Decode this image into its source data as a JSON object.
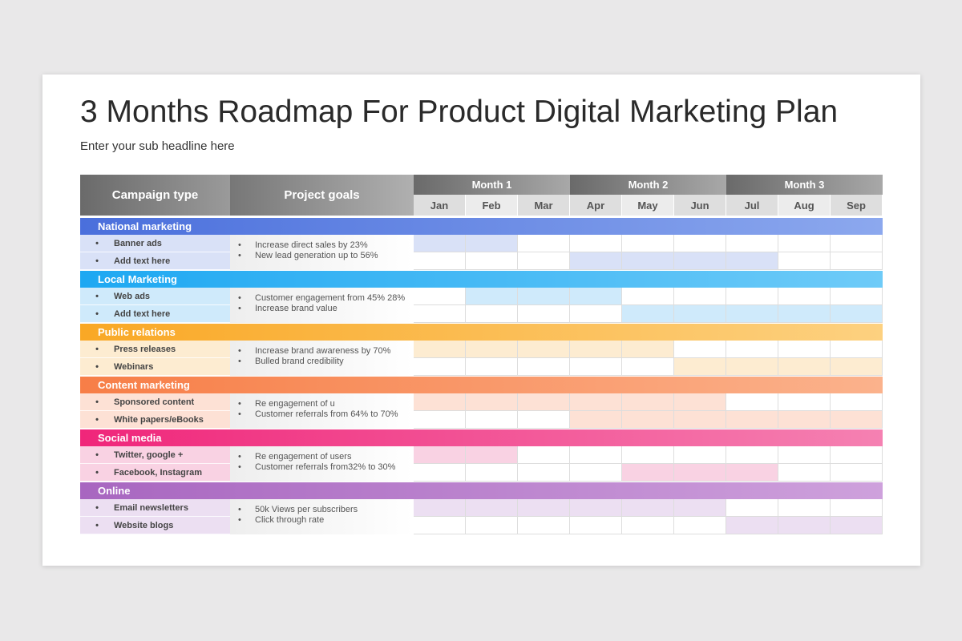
{
  "title": "3 Months Roadmap For Product Digital Marketing Plan",
  "subtitle": "Enter your sub headline here",
  "header": {
    "campaign": "Campaign type",
    "goals": "Project goals",
    "months": [
      "Month 1",
      "Month 2",
      "Month 3"
    ],
    "sub_months": [
      "Jan",
      "Feb",
      "Mar",
      "Apr",
      "May",
      "Jun",
      "Jul",
      "Aug",
      "Sep"
    ]
  },
  "sections": [
    {
      "name": "National marketing",
      "color": "#4a6fdc",
      "color2": "#8ca8ee",
      "light": "#d9e1f7",
      "items": [
        {
          "label": "Banner ads",
          "start": "Jan",
          "end": "Feb"
        },
        {
          "label": "Add text here",
          "start": "Apr",
          "end": "Jul"
        }
      ],
      "goals": [
        "Increase direct sales by 23%",
        "New lead generation up to 56%"
      ]
    },
    {
      "name": "Local Marketing",
      "color": "#1ea8f2",
      "color2": "#6ecbf8",
      "light": "#cfeafb",
      "items": [
        {
          "label": "Web ads",
          "start": "Feb",
          "end": "Apr"
        },
        {
          "label": "Add text here",
          "start": "May",
          "end": "Sep"
        }
      ],
      "goals": [
        "Customer engagement from 45% 28%",
        "Increase brand value"
      ]
    },
    {
      "name": "Public relations",
      "color": "#f9a825",
      "color2": "#fdd180",
      "light": "#fdecd1",
      "items": [
        {
          "label": "Press releases",
          "start": "Jan",
          "end": "May"
        },
        {
          "label": "Webinars",
          "start": "Jun",
          "end": "Sep"
        }
      ],
      "goals": [
        "Increase brand awareness by 70%",
        "Bulled brand credibility"
      ]
    },
    {
      "name": "Content marketing",
      "color": "#f77e47",
      "color2": "#fbb28c",
      "light": "#fde1d5",
      "items": [
        {
          "label": "Sponsored content",
          "start": "Jan",
          "end": "Jun"
        },
        {
          "label": "White papers/eBooks",
          "start": "Apr",
          "end": "Sep"
        }
      ],
      "goals": [
        "Re engagement of u",
        "Customer referrals from 64% to 70%"
      ]
    },
    {
      "name": "Social media",
      "color": "#f0267a",
      "color2": "#f581b2",
      "light": "#f9d2e3",
      "items": [
        {
          "label": "Twitter, google +",
          "start": "Jan",
          "end": "Feb"
        },
        {
          "label": "Facebook, Instagram",
          "start": "May",
          "end": "Jul"
        }
      ],
      "goals": [
        "Re engagement of users",
        "Customer referrals from32% to 30%"
      ]
    },
    {
      "name": "Online",
      "color": "#a866c0",
      "color2": "#cea1dc",
      "light": "#ecdff2",
      "items": [
        {
          "label": "Email newsletters",
          "start": "Jan",
          "end": "Jun"
        },
        {
          "label": "Website blogs",
          "start": "Jul",
          "end": "Sep"
        }
      ],
      "goals": [
        "50k Views per subscribers",
        "Click through rate"
      ]
    }
  ]
}
